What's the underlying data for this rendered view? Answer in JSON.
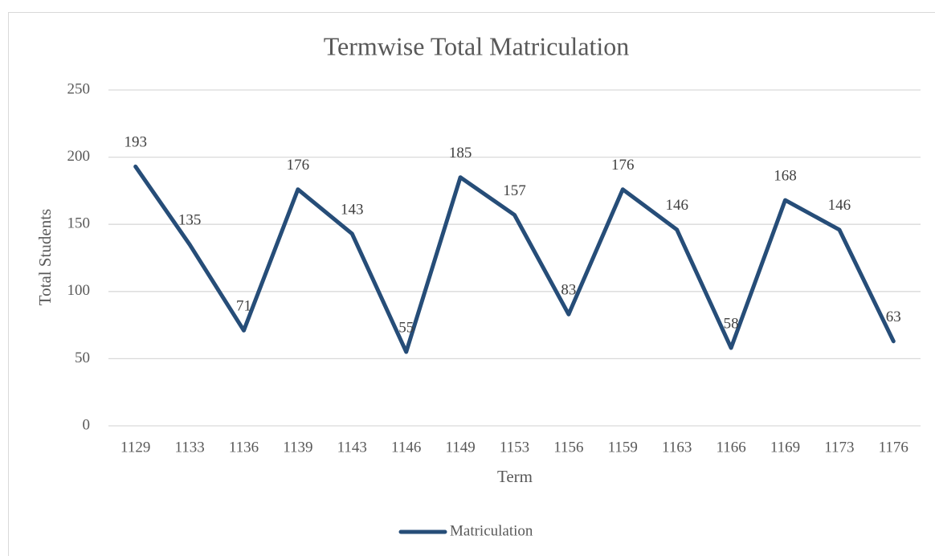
{
  "chart_data": {
    "type": "line",
    "title": "Termwise Total Matriculation",
    "x_label": "Term",
    "y_label": "Total Students",
    "categories": [
      "1129",
      "1133",
      "1136",
      "1139",
      "1143",
      "1146",
      "1149",
      "1153",
      "1156",
      "1159",
      "1163",
      "1166",
      "1169",
      "1173",
      "1176"
    ],
    "series": [
      {
        "name": "Matriculation",
        "color": "#264d78",
        "values": [
          193,
          135,
          71,
          176,
          143,
          55,
          185,
          157,
          83,
          176,
          146,
          58,
          168,
          146,
          63
        ]
      }
    ],
    "ylim": [
      0,
      250
    ],
    "yticks": [
      0,
      50,
      100,
      150,
      200,
      250
    ],
    "grid": true,
    "legend": "bottom"
  }
}
